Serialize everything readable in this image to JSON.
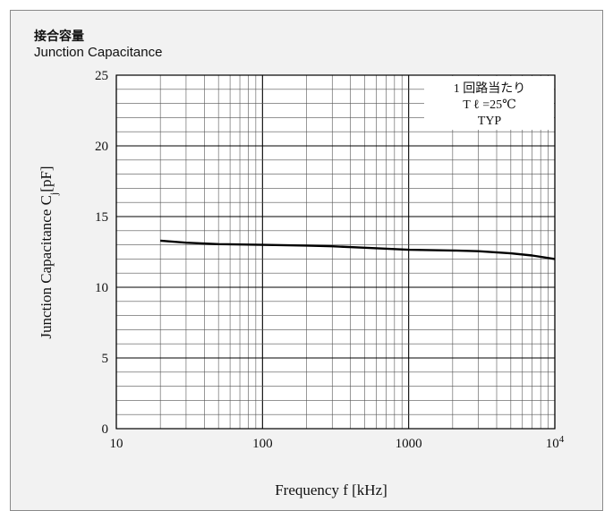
{
  "header": {
    "title_jp": "接合容量",
    "title_en": "Junction Capacitance"
  },
  "chart_data": {
    "type": "line",
    "xscale": "log",
    "xlim": [
      10,
      10000
    ],
    "ylim": [
      0,
      25
    ],
    "xticks": [
      {
        "value": 10,
        "label": "10"
      },
      {
        "value": 100,
        "label": "100"
      },
      {
        "value": 1000,
        "label": "1000"
      },
      {
        "value": 10000,
        "label": "10",
        "exp": "4"
      }
    ],
    "yticks": [
      0,
      5,
      10,
      15,
      20,
      25
    ],
    "xlabel": "Frequency f [kHz]",
    "ylabel_main": "Junction Capacitance C",
    "ylabel_sub": "j",
    "ylabel_tail": "[pF]",
    "annotation": [
      "1 回路当たり",
      "T ℓ =25℃",
      "TYP"
    ],
    "grid": true,
    "series": [
      {
        "color": "#000000",
        "x": [
          20,
          30,
          50,
          100,
          200,
          300,
          500,
          1000,
          2000,
          3000,
          5000,
          7000,
          10000
        ],
        "y": [
          13.3,
          13.15,
          13.05,
          13.0,
          12.95,
          12.9,
          12.8,
          12.65,
          12.6,
          12.55,
          12.4,
          12.25,
          12.0
        ]
      }
    ]
  }
}
